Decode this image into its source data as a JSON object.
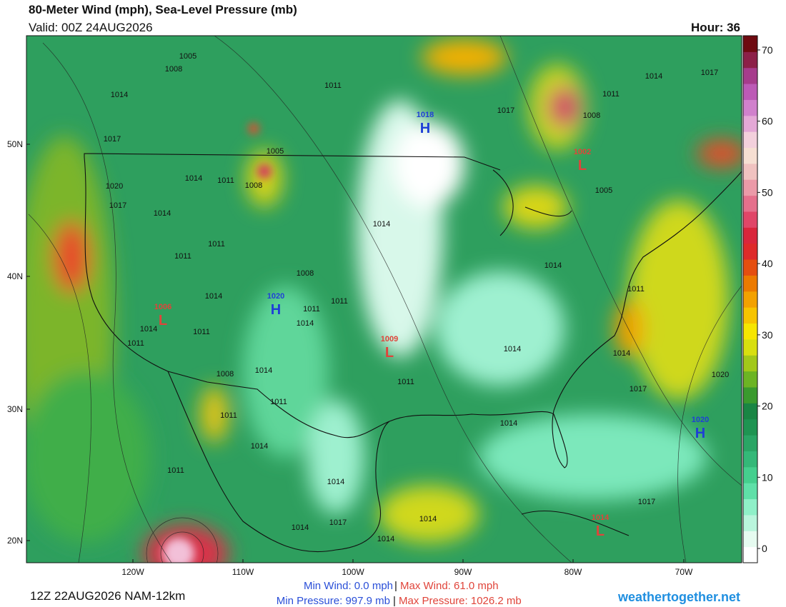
{
  "header": {
    "title": "80-Meter Wind (mph), Sea-Level Pressure (mb)",
    "valid": "Valid: 00Z 24AUG2026",
    "hour": "Hour: 36"
  },
  "map": {
    "lat_labels": [
      "50N",
      "40N",
      "30N",
      "20N"
    ],
    "lon_labels": [
      "120W",
      "110W",
      "100W",
      "90W",
      "80W",
      "70W"
    ],
    "centers": [
      {
        "letter": "H",
        "value": 1018,
        "color": "#1f3fd6"
      },
      {
        "letter": "L",
        "value": 1002,
        "color": "#e0443a"
      },
      {
        "letter": "H",
        "value": 1020,
        "color": "#1f3fd6"
      },
      {
        "letter": "L",
        "value": 1006,
        "color": "#e0443a"
      },
      {
        "letter": "L",
        "value": 1009,
        "color": "#e0443a"
      },
      {
        "letter": "H",
        "value": 1020,
        "color": "#1f3fd6"
      },
      {
        "letter": "L",
        "value": 1014,
        "color": "#e0443a"
      }
    ],
    "isobar_labels": [
      1005,
      1008,
      1014,
      1017,
      1020,
      1017,
      1014,
      1014,
      1011,
      1008,
      1005,
      1011,
      1017,
      1011,
      1008,
      1014,
      1017,
      1005,
      1014,
      1011,
      1011,
      1008,
      1014,
      1011,
      1011,
      1014,
      1014,
      1011,
      1011,
      1008,
      1014,
      1011,
      1011,
      1014,
      1014,
      1011,
      1014,
      1017,
      1020,
      1014,
      1011,
      1014,
      1014,
      1017,
      1014,
      1014,
      1014,
      1011,
      1017
    ]
  },
  "colorbar": {
    "range": [
      -2,
      72
    ],
    "ticks": [
      0,
      10,
      20,
      30,
      40,
      50,
      60,
      70
    ],
    "colors": [
      "#ffffff",
      "#e6fbf0",
      "#b9f5dc",
      "#8ff0c8",
      "#5fe0a8",
      "#45cf8e",
      "#34b878",
      "#2aa565",
      "#1f9452",
      "#198544",
      "#3a9a2e",
      "#6cb424",
      "#a2c81a",
      "#d8df10",
      "#f6e600",
      "#f7c400",
      "#f3a100",
      "#ec7a00",
      "#e54e10",
      "#de2a2a",
      "#d9263c",
      "#e04668",
      "#e5708c",
      "#eb9aa8",
      "#f0c2c0",
      "#f6dfd2",
      "#f3d0dc",
      "#e4a8d6",
      "#d081cc",
      "#bc5ab6",
      "#a63c8c",
      "#8c2048",
      "#6e0a10"
    ]
  },
  "footer": {
    "run": "12Z 22AUG2026 NAM-12km",
    "min_wind": "Min Wind:   0.0 mph",
    "max_wind": "Max Wind: 61.0 mph",
    "min_pressure": "Min Pressure: 997.9 mb",
    "max_pressure": "Max Pressure: 1026.2 mb",
    "site": "weathertogether.net"
  }
}
